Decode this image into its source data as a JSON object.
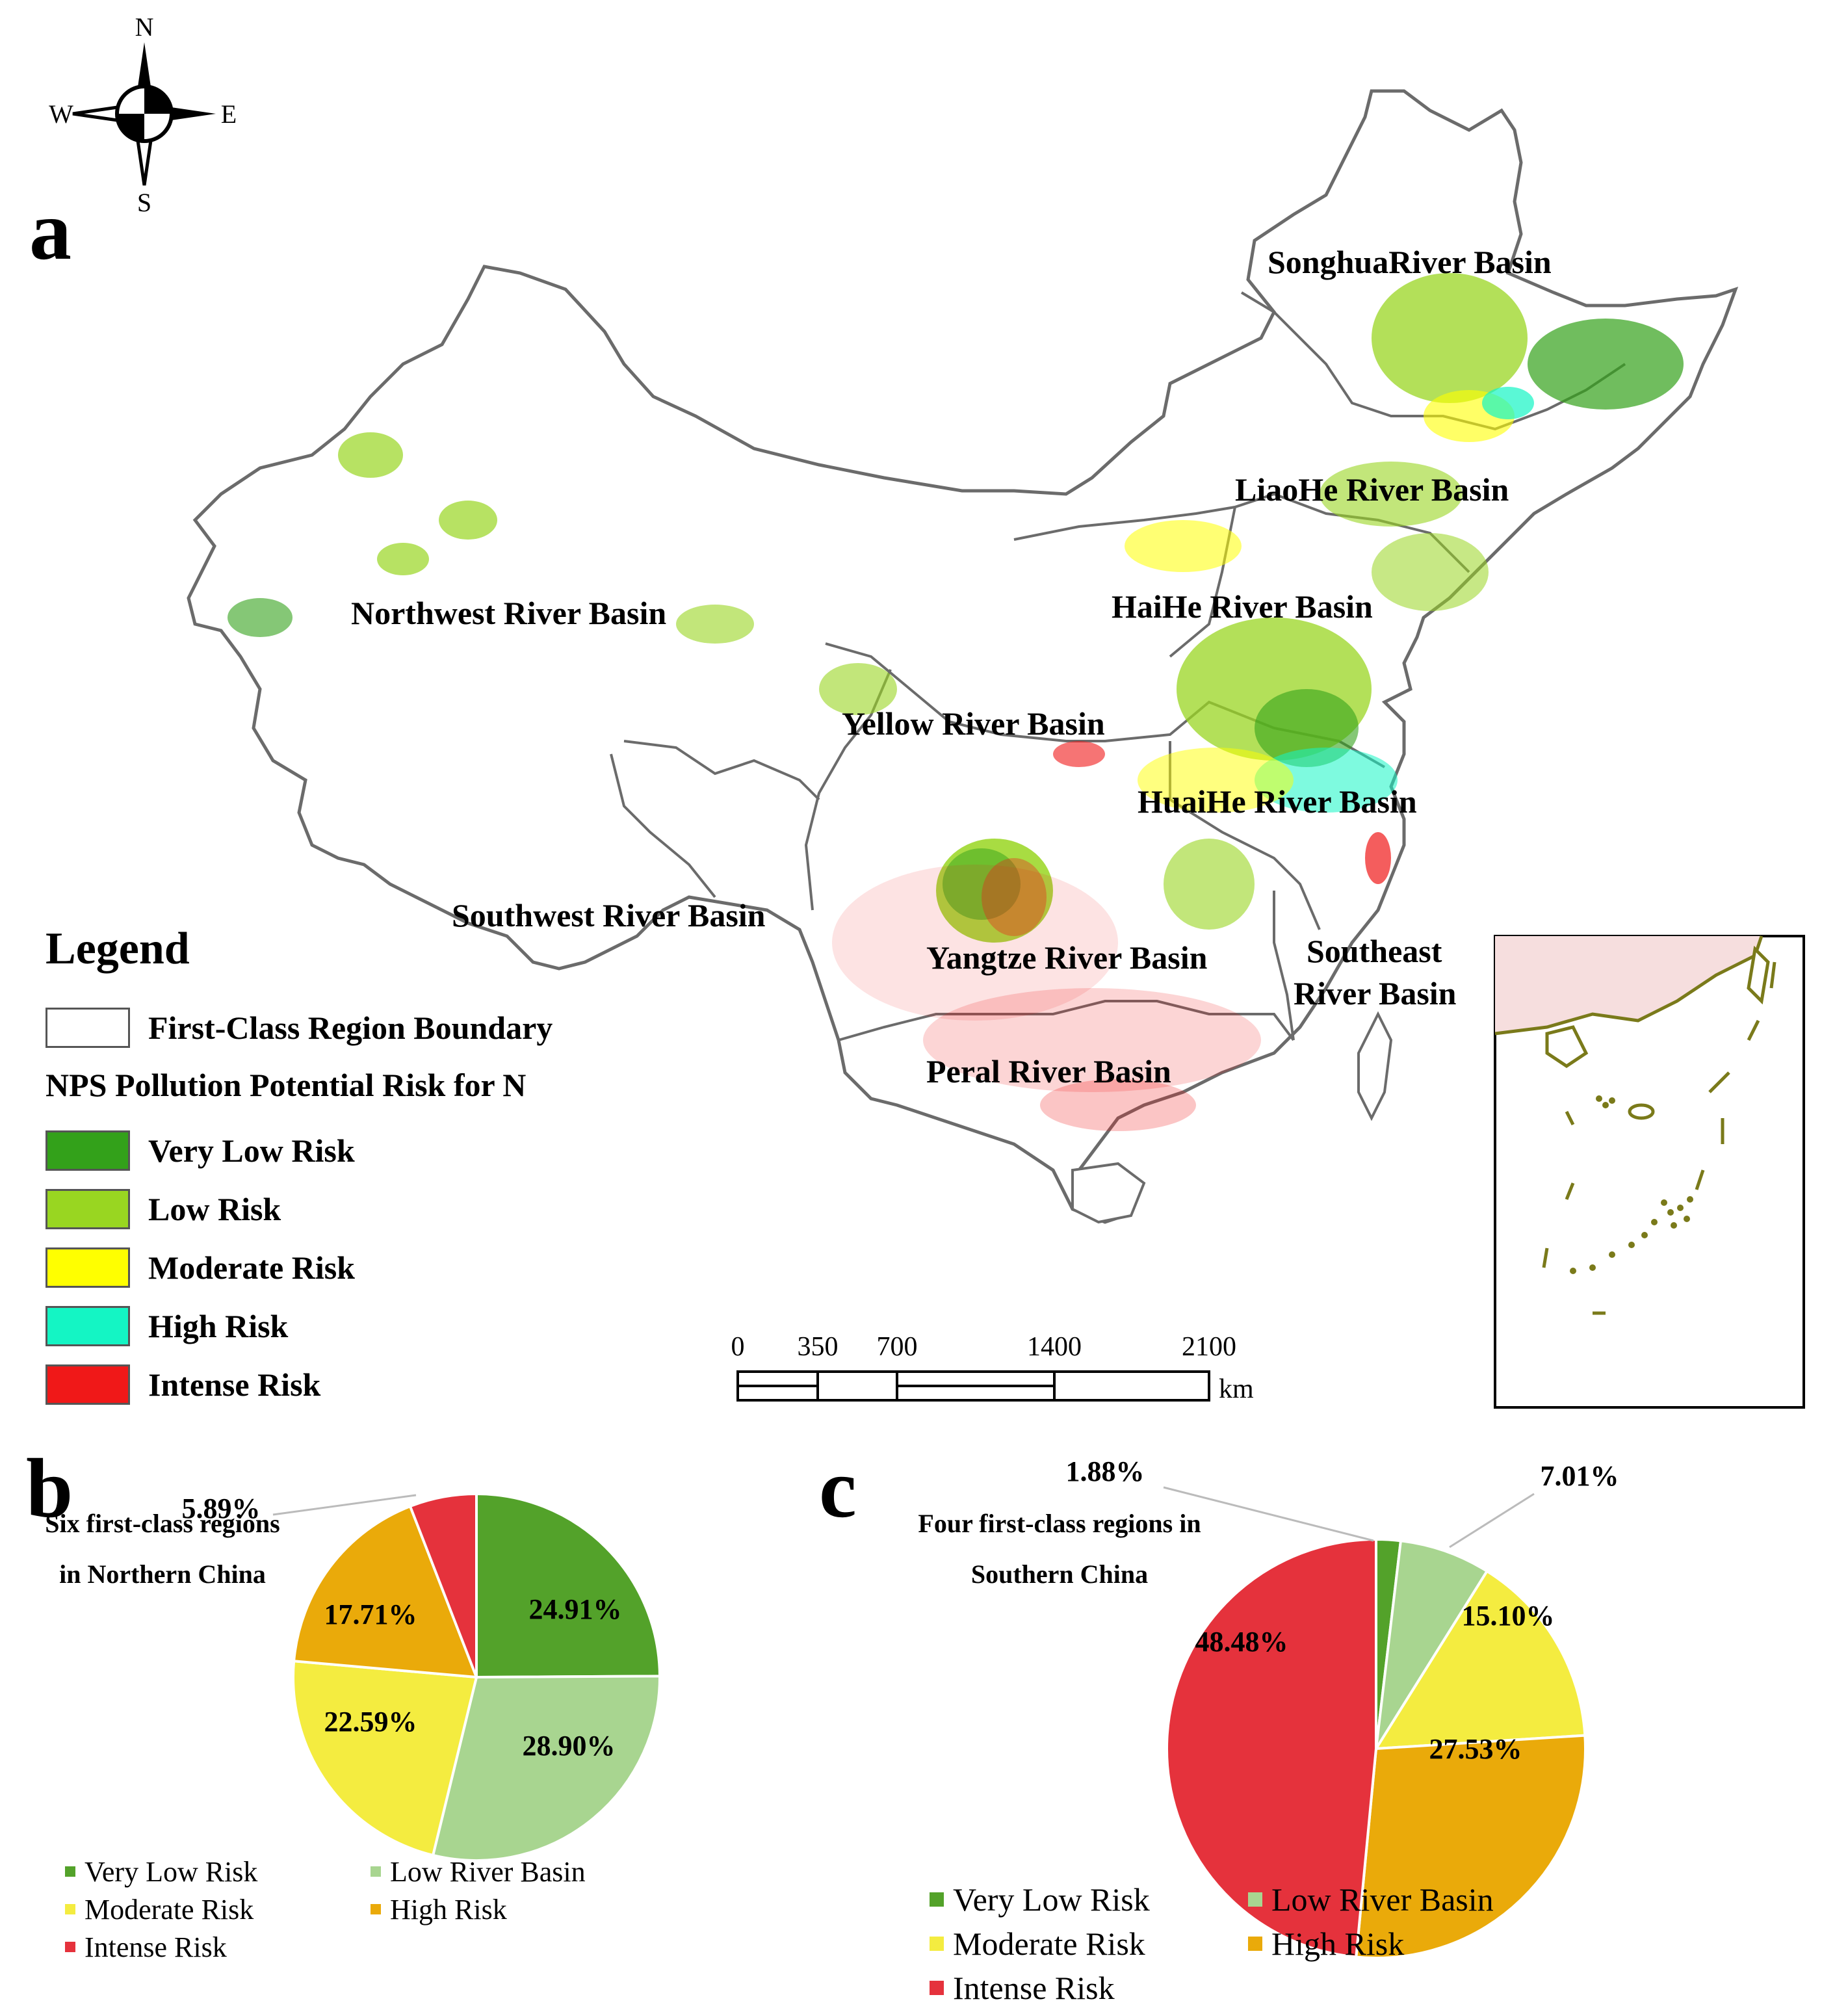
{
  "compass": {
    "n": "N",
    "s": "S",
    "e": "E",
    "w": "W"
  },
  "panels": {
    "a": "a",
    "b": "b",
    "c": "c"
  },
  "basins": [
    {
      "id": "songhua",
      "label": "SonghuaRiver Basin"
    },
    {
      "id": "liaohe",
      "label": "LiaoHe River Basin"
    },
    {
      "id": "northwest",
      "label": "Northwest River Basin"
    },
    {
      "id": "haihe",
      "label": "HaiHe River Basin"
    },
    {
      "id": "yellow",
      "label": "Yellow River Basin"
    },
    {
      "id": "huaihe",
      "label": "HuaiHe River Basin"
    },
    {
      "id": "southwest",
      "label": "Southwest River Basin"
    },
    {
      "id": "yangtze",
      "label": "Yangtze River Basin"
    },
    {
      "id": "southeast1",
      "label": "Southeast"
    },
    {
      "id": "southeast2",
      "label": "River Basin"
    },
    {
      "id": "pearl",
      "label": "Peral River Basin"
    }
  ],
  "legend": {
    "title": "Legend",
    "boundary_label": "First-Class Region Boundary",
    "subtitle": "NPS Pollution Potential Risk for N",
    "items": [
      {
        "label": "Very Low Risk",
        "color": "#33a11a"
      },
      {
        "label": "Low Risk",
        "color": "#99d621"
      },
      {
        "label": "Moderate Risk",
        "color": "#ffff00"
      },
      {
        "label": "High Risk",
        "color": "#14f5c4"
      },
      {
        "label": "Intense Risk",
        "color": "#f01818"
      }
    ]
  },
  "scale_bar": {
    "ticks": [
      "0",
      "350",
      "700",
      "1400",
      "2100"
    ],
    "unit": "km"
  },
  "chart_data": [
    {
      "type": "pie",
      "panel": "b",
      "title": "Six first-class regions in Northern China",
      "title_lines": [
        "Six first-class regions",
        "in Northern China"
      ],
      "slices": [
        {
          "label": "Very Low Risk",
          "value": 24.91,
          "text": "24.91%",
          "color": "#53a22a"
        },
        {
          "label": "Low River Basin",
          "value": 28.9,
          "text": "28.90%",
          "color": "#a8d590"
        },
        {
          "label": "Moderate Risk",
          "value": 22.59,
          "text": "22.59%",
          "color": "#f4ec40"
        },
        {
          "label": "High Risk",
          "value": 17.71,
          "text": "17.71%",
          "color": "#eaaa0a"
        },
        {
          "label": "Intense Risk",
          "value": 5.89,
          "text": "5.89%",
          "color": "#e5323c"
        }
      ],
      "legend": [
        "Very Low Risk",
        "Low River Basin",
        "Moderate Risk",
        "High Risk",
        "Intense Risk"
      ]
    },
    {
      "type": "pie",
      "panel": "c",
      "title": "Four first-class regions in Southern China",
      "title_lines": [
        "Four first-class regions in",
        "Southern China"
      ],
      "slices": [
        {
          "label": "Very Low Risk",
          "value": 1.88,
          "text": "1.88%",
          "color": "#53a22a"
        },
        {
          "label": "Low River Basin",
          "value": 7.01,
          "text": "7.01%",
          "color": "#a8d590"
        },
        {
          "label": "Moderate Risk",
          "value": 15.1,
          "text": "15.10%",
          "color": "#f4ec40"
        },
        {
          "label": "High Risk",
          "value": 27.53,
          "text": "27.53%",
          "color": "#eaaa0a"
        },
        {
          "label": "Intense Risk",
          "value": 48.48,
          "text": "48.48%",
          "color": "#e5323c"
        }
      ],
      "legend": [
        "Very Low Risk",
        "Low River Basin",
        "Moderate Risk",
        "High Risk",
        "Intense Risk"
      ]
    }
  ]
}
